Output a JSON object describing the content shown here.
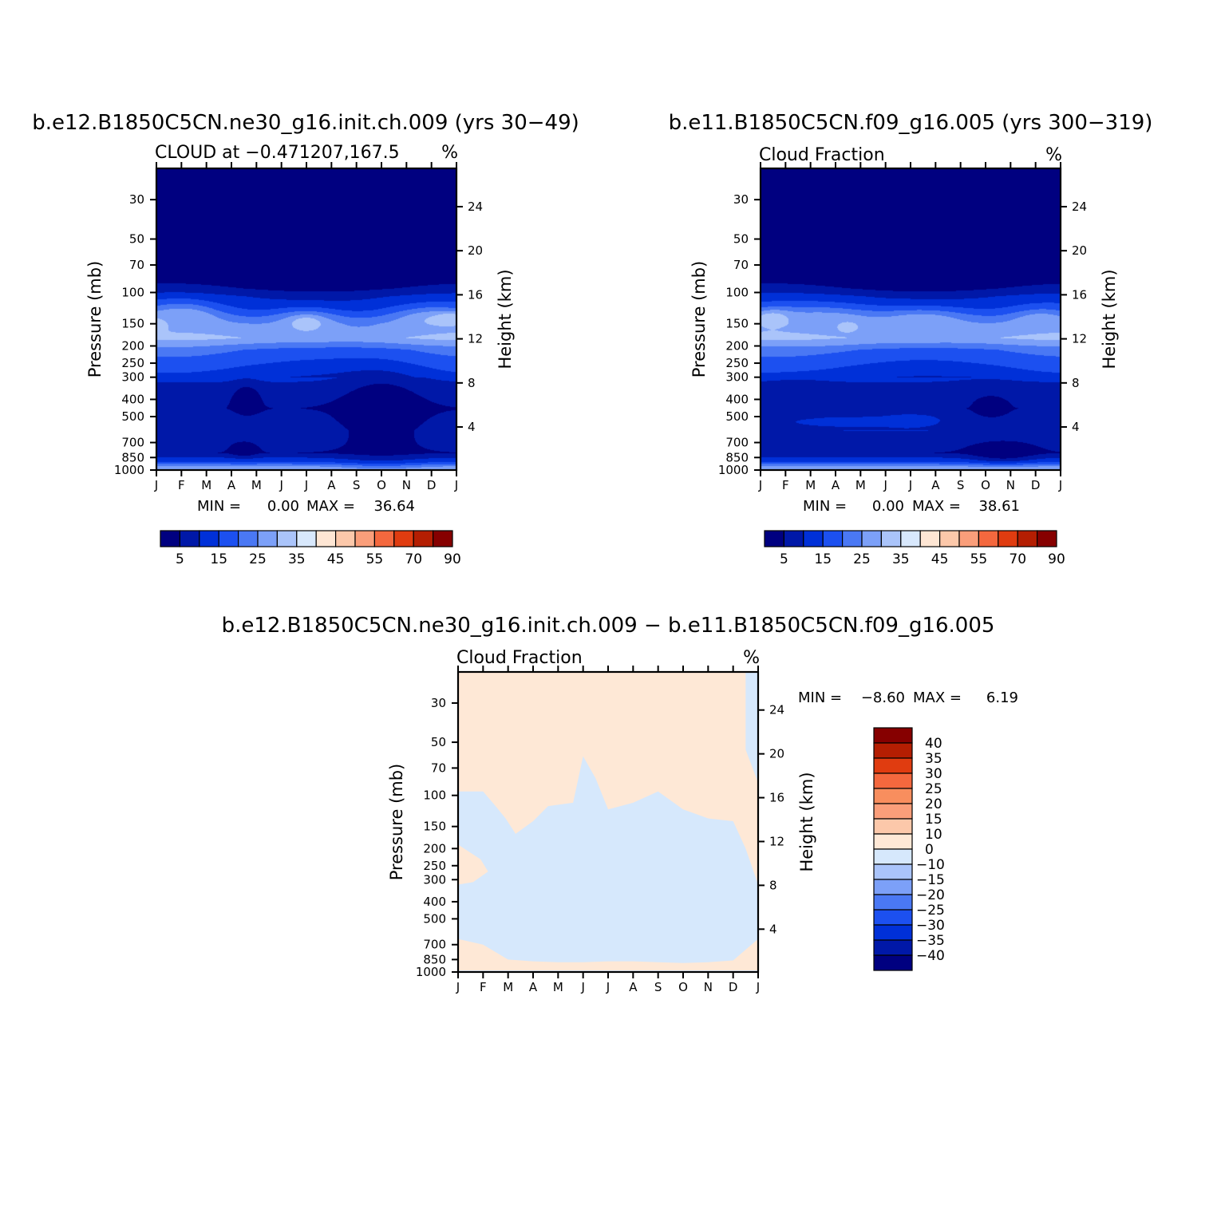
{
  "colors": {
    "seq": [
      "#000080",
      "#0018a8",
      "#0030d8",
      "#1c50f0",
      "#4a78f4",
      "#7ca0f8",
      "#aac4fa",
      "#d8e8fc",
      "#fee6d4",
      "#fcc8aa",
      "#fa9e7a",
      "#f4683e",
      "#e03c10",
      "#b41e02",
      "#860000"
    ],
    "diff_pos": "#fee8d6",
    "diff_neg": "#d6e8fc"
  },
  "chart_data": [
    {
      "type": "heatmap",
      "title": "b.e12.B1850C5CN.ne30_g16.init.ch.009 (yrs 30−49)",
      "left_label": "CLOUD at −0.471207,167.5",
      "unit": "%",
      "ylabel": "Pressure (mb)",
      "y2label": "Height (km)",
      "months": [
        "J",
        "F",
        "M",
        "A",
        "M",
        "J",
        "J",
        "A",
        "S",
        "O",
        "N",
        "D",
        "J"
      ],
      "pressure_ticks": [
        "30",
        "50",
        "70",
        "100",
        "150",
        "200",
        "250",
        "300",
        "400",
        "500",
        "700",
        "850",
        "1000"
      ],
      "pressure_values": [
        30,
        50,
        70,
        100,
        150,
        200,
        250,
        300,
        400,
        500,
        700,
        850,
        1000
      ],
      "plim": [
        20,
        1000
      ],
      "height_ticks": [
        "4",
        "8",
        "12",
        "16",
        "20",
        "24"
      ],
      "height_values": [
        4,
        8,
        12,
        16,
        20,
        24
      ],
      "stats_min_label": "MIN =",
      "stats_min": "0.00",
      "stats_max_label": "MAX =",
      "stats_max": "36.64",
      "levels": [
        5,
        10,
        15,
        20,
        25,
        30,
        35,
        40,
        45,
        50,
        55,
        60,
        70,
        80,
        90
      ],
      "colorbar_labels": [
        "5",
        "15",
        "25",
        "35",
        "45",
        "55",
        "70",
        "90"
      ],
      "profile": {
        "p": [
          20,
          80,
          95,
          105,
          125,
          150,
          180,
          210,
          260,
          320,
          450,
          600,
          800,
          900,
          950,
          985,
          1000
        ],
        "v": [
          0,
          0,
          5,
          10,
          15,
          25,
          30,
          20,
          15,
          10,
          5,
          10,
          5,
          15,
          25,
          30,
          32
        ]
      },
      "cells": [
        {
          "m": 0.0,
          "p": 150,
          "v": 35,
          "rx": 0.5,
          "rp": 0.1
        },
        {
          "m": 0.6,
          "p": 150,
          "v": 30,
          "rx": 1.6,
          "rp": 0.22
        },
        {
          "m": 1.2,
          "p": 145,
          "v": 30,
          "rx": 1.3,
          "rp": 0.2
        },
        {
          "m": 6.0,
          "p": 150,
          "v": 30,
          "rx": 1.4,
          "rp": 0.18
        },
        {
          "m": 6.0,
          "p": 150,
          "v": 35,
          "rx": 0.5,
          "rp": 0.08
        },
        {
          "m": 11.0,
          "p": 145,
          "v": 30,
          "rx": 1.6,
          "rp": 0.18
        },
        {
          "m": 11.8,
          "p": 140,
          "v": 35,
          "rx": 0.7,
          "rp": 0.08
        },
        {
          "m": 3.6,
          "p": 400,
          "v": 0,
          "rx": 0.6,
          "rp": 0.2
        },
        {
          "m": 3.5,
          "p": 760,
          "v": 0,
          "rx": 0.55,
          "rp": 0.1
        },
        {
          "m": 9.0,
          "p": 500,
          "v": 0,
          "rx": 1.9,
          "rp": 0.55
        },
        {
          "m": 1.3,
          "p": 500,
          "v": 10,
          "rx": 1.4,
          "rp": 0.1
        },
        {
          "m": 5.6,
          "p": 500,
          "v": 10,
          "rx": 0.8,
          "rp": 0.06
        }
      ]
    },
    {
      "type": "heatmap",
      "title": "b.e11.B1850C5CN.f09_g16.005 (yrs 300−319)",
      "left_label": "Cloud Fraction",
      "unit": "%",
      "ylabel": "Pressure (mb)",
      "y2label": "Height (km)",
      "months": [
        "J",
        "F",
        "M",
        "A",
        "M",
        "J",
        "J",
        "A",
        "S",
        "O",
        "N",
        "D",
        "J"
      ],
      "pressure_ticks": [
        "30",
        "50",
        "70",
        "100",
        "150",
        "200",
        "250",
        "300",
        "400",
        "500",
        "700",
        "850",
        "1000"
      ],
      "pressure_values": [
        30,
        50,
        70,
        100,
        150,
        200,
        250,
        300,
        400,
        500,
        700,
        850,
        1000
      ],
      "plim": [
        20,
        1000
      ],
      "height_ticks": [
        "4",
        "8",
        "12",
        "16",
        "20",
        "24"
      ],
      "height_values": [
        4,
        8,
        12,
        16,
        20,
        24
      ],
      "stats_min_label": "MIN =",
      "stats_min": "0.00",
      "stats_max_label": "MAX =",
      "stats_max": "38.61",
      "levels": [
        5,
        10,
        15,
        20,
        25,
        30,
        35,
        40,
        45,
        50,
        55,
        60,
        70,
        80,
        90
      ],
      "colorbar_labels": [
        "5",
        "15",
        "25",
        "35",
        "45",
        "55",
        "70",
        "90"
      ],
      "profile": {
        "p": [
          20,
          80,
          95,
          105,
          125,
          150,
          180,
          210,
          260,
          320,
          450,
          600,
          800,
          900,
          950,
          985,
          1000
        ],
        "v": [
          0,
          0,
          5,
          10,
          15,
          25,
          30,
          20,
          15,
          10,
          5,
          10,
          5,
          15,
          25,
          30,
          32
        ]
      },
      "cells": [
        {
          "m": 0.5,
          "p": 140,
          "v": 35,
          "rx": 0.9,
          "rp": 0.12
        },
        {
          "m": 3.5,
          "p": 155,
          "v": 35,
          "rx": 0.5,
          "rp": 0.08
        },
        {
          "m": 2.5,
          "p": 150,
          "v": 30,
          "rx": 2.6,
          "rp": 0.22
        },
        {
          "m": 6.5,
          "p": 150,
          "v": 30,
          "rx": 2.0,
          "rp": 0.2
        },
        {
          "m": 11.2,
          "p": 150,
          "v": 30,
          "rx": 1.2,
          "rp": 0.18
        },
        {
          "m": 3.5,
          "p": 530,
          "v": 15,
          "rx": 2.3,
          "rp": 0.06
        },
        {
          "m": 6.0,
          "p": 520,
          "v": 15,
          "rx": 1.3,
          "rp": 0.08
        },
        {
          "m": 9.0,
          "p": 430,
          "v": 5,
          "rx": 1.5,
          "rp": 0.28
        },
        {
          "m": 9.3,
          "p": 440,
          "v": 0,
          "rx": 0.5,
          "rp": 0.1
        },
        {
          "m": 9.7,
          "p": 780,
          "v": 0,
          "rx": 1.4,
          "rp": 0.14
        },
        {
          "m": 1.5,
          "p": 400,
          "v": 5,
          "rx": 1.4,
          "rp": 0.2
        }
      ]
    },
    {
      "type": "heatmap",
      "title": "b.e12.B1850C5CN.ne30_g16.init.ch.009 − b.e11.B1850C5CN.f09_g16.005",
      "left_label": "Cloud Fraction",
      "unit": "%",
      "ylabel": "Pressure (mb)",
      "y2label": "Height (km)",
      "months": [
        "J",
        "F",
        "M",
        "A",
        "M",
        "J",
        "J",
        "A",
        "S",
        "O",
        "N",
        "D",
        "J"
      ],
      "pressure_ticks": [
        "30",
        "50",
        "70",
        "100",
        "150",
        "200",
        "250",
        "300",
        "400",
        "500",
        "700",
        "850",
        "1000"
      ],
      "pressure_values": [
        30,
        50,
        70,
        100,
        150,
        200,
        250,
        300,
        400,
        500,
        700,
        850,
        1000
      ],
      "plim": [
        20,
        1000
      ],
      "height_ticks": [
        "4",
        "8",
        "12",
        "16",
        "20",
        "24"
      ],
      "height_values": [
        4,
        8,
        12,
        16,
        20,
        24
      ],
      "stats_min_label": "MIN =",
      "stats_min": "−8.60",
      "stats_max_label": "MAX =",
      "stats_max": "6.19",
      "levels": [
        -40,
        -35,
        -30,
        -25,
        -20,
        -15,
        -10,
        0,
        10,
        15,
        20,
        25,
        30,
        35,
        40
      ],
      "colorbar_labels": [
        "40",
        "35",
        "30",
        "25",
        "20",
        "15",
        "10",
        "0",
        "−10",
        "−15",
        "−20",
        "−25",
        "−30",
        "−35",
        "−40"
      ],
      "negative_region": {
        "upper_boundary": {
          "m": [
            0,
            1,
            1.5,
            1.9,
            2.3,
            3.0,
            3.6,
            4.6,
            5.0,
            5.5,
            6.0,
            7.0,
            8.0,
            9.0,
            10.0,
            11.0,
            11.5,
            12.0
          ],
          "p": [
            95,
            95,
            115,
            135,
            165,
            140,
            115,
            110,
            60,
            80,
            120,
            110,
            95,
            120,
            135,
            140,
            200,
            320
          ]
        },
        "lower_boundary": {
          "m": [
            0,
            1,
            2,
            3,
            4,
            5,
            6,
            7,
            8,
            9,
            10,
            11,
            12
          ],
          "p": [
            650,
            700,
            850,
            870,
            880,
            880,
            870,
            870,
            880,
            890,
            880,
            860,
            650
          ]
        },
        "left_positive_pocket": {
          "m": [
            0,
            0.9,
            1.2,
            0.6,
            0
          ],
          "p": [
            190,
            230,
            270,
            310,
            320
          ]
        }
      }
    }
  ]
}
